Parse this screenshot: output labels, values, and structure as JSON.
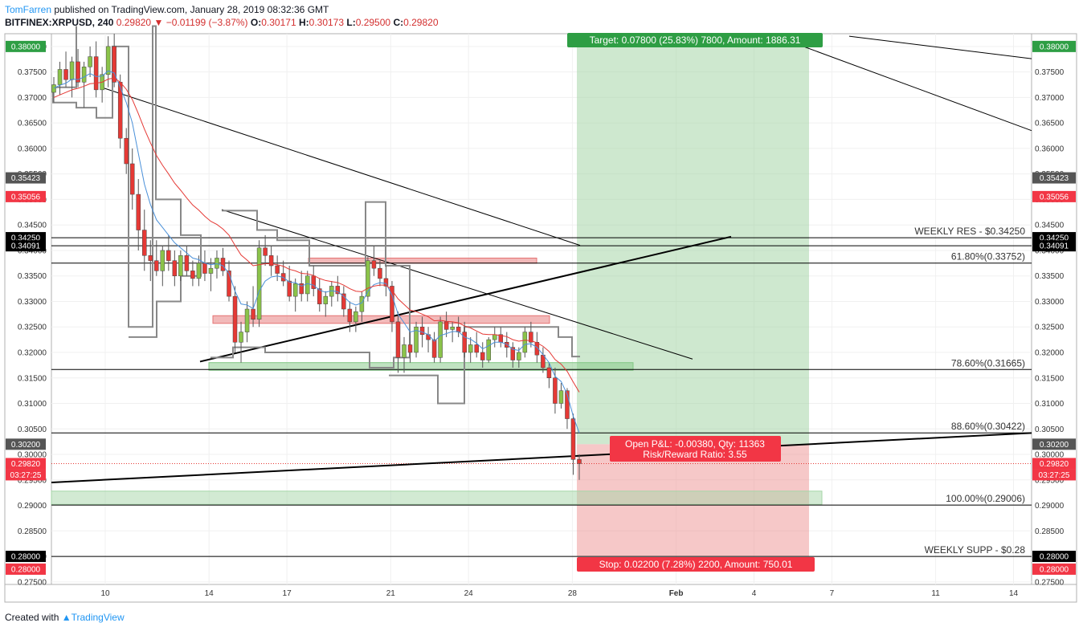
{
  "header": {
    "author": "TomFarren",
    "published": "published on TradingView.com, January 28, 2019 08:32:36 GMT",
    "symbol": "BITFINEX:XRPUSD, 240",
    "last": "0.29820",
    "change": "−0.01199 (−3.87%)",
    "o_label": "O:",
    "o_value": "0.30171",
    "h_label": "H:",
    "h_value": "0.30173",
    "l_label": "L:",
    "l_value": "0.29500",
    "c_label": "C:",
    "c_value": "0.29820"
  },
  "footer": {
    "created_with": "Created with",
    "brand": "TradingView"
  },
  "colors": {
    "up": "#8bc34a",
    "down": "#e53935",
    "green_tag": "#26a69a",
    "red_tag": "#f23645",
    "dark_tag": "#555555",
    "black_tag": "#000000"
  },
  "chart_data": {
    "type": "candlestick",
    "y_ticks": [
      "0.38000",
      "0.37500",
      "0.37000",
      "0.36500",
      "0.36000",
      "0.35500",
      "0.35000",
      "0.34500",
      "0.34000",
      "0.33500",
      "0.33000",
      "0.32500",
      "0.32000",
      "0.31500",
      "0.31000",
      "0.30500",
      "0.30000",
      "0.29500",
      "0.29000",
      "0.28500",
      "0.28000",
      "0.27500"
    ],
    "ylim": [
      0.2745,
      0.3825
    ],
    "x_ticks": [
      "10",
      "14",
      "17",
      "21",
      "24",
      "28",
      "Feb",
      "4",
      "7",
      "11",
      "14"
    ],
    "price_tags": [
      {
        "price": 0.38,
        "text": "0.38000",
        "kind": "green"
      },
      {
        "price": 0.35423,
        "text": "0.35423",
        "kind": "dark"
      },
      {
        "price": 0.35056,
        "text": "0.35056",
        "kind": "red"
      },
      {
        "price": 0.3425,
        "text": "0.34250",
        "kind": "black"
      },
      {
        "price": 0.34091,
        "text": "0.34091",
        "kind": "black"
      },
      {
        "price": 0.302,
        "text": "0.30200",
        "kind": "dark"
      },
      {
        "price": 0.2982,
        "text": "0.29820",
        "kind": "red"
      },
      {
        "price": 0.296,
        "text": "03:27:25",
        "kind": "red"
      },
      {
        "price": 0.28,
        "text": "0.28000",
        "kind": "black"
      },
      {
        "price": 0.2775,
        "text": "0.28000",
        "kind": "red"
      }
    ],
    "horizontal_levels": [
      {
        "price": 0.3425,
        "label": "WEEKLY RES - $0.34250"
      },
      {
        "price": 0.33752,
        "label": "61.80%(0.33752)"
      },
      {
        "price": 0.31665,
        "label": "78.60%(0.31665)"
      },
      {
        "price": 0.30422,
        "label": "88.60%(0.30422)"
      },
      {
        "price": 0.29006,
        "label": "100.00%(0.29006)"
      },
      {
        "price": 0.28,
        "label": "WEEKLY SUPP - $0.28"
      }
    ],
    "position": {
      "entry": 0.302,
      "target": 0.38,
      "stop": 0.28,
      "target_text": "Target: 0.07800 (25.83%) 7800, Amount: 1886.31",
      "stop_text": "Stop: 0.02200 (7.28%) 2200, Amount: 750.01",
      "pnl_text": "Open P&L: -0.00380, Qty: 11363",
      "rr_text": "Risk/Reward Ratio: 3.55"
    },
    "candles": [
      [
        0.371,
        0.374,
        0.369,
        0.3725
      ],
      [
        0.3725,
        0.377,
        0.3705,
        0.3755
      ],
      [
        0.3755,
        0.379,
        0.372,
        0.3735
      ],
      [
        0.3735,
        0.378,
        0.37,
        0.377
      ],
      [
        0.377,
        0.3795,
        0.372,
        0.373
      ],
      [
        0.373,
        0.377,
        0.368,
        0.376
      ],
      [
        0.376,
        0.38,
        0.374,
        0.378
      ],
      [
        0.378,
        0.381,
        0.37,
        0.3715
      ],
      [
        0.3715,
        0.376,
        0.369,
        0.3745
      ],
      [
        0.3745,
        0.382,
        0.372,
        0.38
      ],
      [
        0.38,
        0.3825,
        0.372,
        0.373
      ],
      [
        0.373,
        0.3745,
        0.36,
        0.362
      ],
      [
        0.362,
        0.364,
        0.355,
        0.357
      ],
      [
        0.357,
        0.36,
        0.348,
        0.351
      ],
      [
        0.351,
        0.354,
        0.34,
        0.344
      ],
      [
        0.344,
        0.348,
        0.336,
        0.339
      ],
      [
        0.339,
        0.342,
        0.334,
        0.338
      ],
      [
        0.338,
        0.342,
        0.335,
        0.336
      ],
      [
        0.336,
        0.341,
        0.333,
        0.34
      ],
      [
        0.34,
        0.343,
        0.336,
        0.338
      ],
      [
        0.338,
        0.34,
        0.333,
        0.335
      ],
      [
        0.335,
        0.34,
        0.334,
        0.339
      ],
      [
        0.339,
        0.341,
        0.335,
        0.336
      ],
      [
        0.336,
        0.338,
        0.333,
        0.3345
      ],
      [
        0.3345,
        0.339,
        0.333,
        0.3375
      ],
      [
        0.3375,
        0.34,
        0.334,
        0.3355
      ],
      [
        0.3355,
        0.3385,
        0.332,
        0.3365
      ],
      [
        0.3365,
        0.34,
        0.3345,
        0.3385
      ],
      [
        0.3385,
        0.3405,
        0.335,
        0.336
      ],
      [
        0.336,
        0.338,
        0.33,
        0.331
      ],
      [
        0.331,
        0.333,
        0.32,
        0.322
      ],
      [
        0.322,
        0.326,
        0.318,
        0.324
      ],
      [
        0.324,
        0.33,
        0.322,
        0.3285
      ],
      [
        0.3285,
        0.333,
        0.325,
        0.3265
      ],
      [
        0.3265,
        0.342,
        0.325,
        0.3405
      ],
      [
        0.3405,
        0.343,
        0.337,
        0.339
      ],
      [
        0.339,
        0.341,
        0.335,
        0.337
      ],
      [
        0.337,
        0.339,
        0.334,
        0.3355
      ],
      [
        0.3355,
        0.338,
        0.333,
        0.334
      ],
      [
        0.334,
        0.337,
        0.33,
        0.331
      ],
      [
        0.331,
        0.3345,
        0.328,
        0.3335
      ],
      [
        0.3335,
        0.336,
        0.33,
        0.3315
      ],
      [
        0.3315,
        0.336,
        0.33,
        0.335
      ],
      [
        0.335,
        0.337,
        0.331,
        0.3325
      ],
      [
        0.3325,
        0.3345,
        0.328,
        0.3295
      ],
      [
        0.3295,
        0.332,
        0.327,
        0.331
      ],
      [
        0.331,
        0.334,
        0.329,
        0.333
      ],
      [
        0.333,
        0.335,
        0.33,
        0.3315
      ],
      [
        0.3315,
        0.333,
        0.327,
        0.3285
      ],
      [
        0.3285,
        0.33,
        0.324,
        0.326
      ],
      [
        0.326,
        0.329,
        0.324,
        0.328
      ],
      [
        0.328,
        0.332,
        0.326,
        0.331
      ],
      [
        0.331,
        0.339,
        0.33,
        0.338
      ],
      [
        0.338,
        0.341,
        0.335,
        0.3365
      ],
      [
        0.3365,
        0.338,
        0.333,
        0.3345
      ],
      [
        0.3345,
        0.337,
        0.331,
        0.333
      ],
      [
        0.333,
        0.334,
        0.324,
        0.326
      ],
      [
        0.326,
        0.328,
        0.316,
        0.319
      ],
      [
        0.319,
        0.323,
        0.316,
        0.3215
      ],
      [
        0.3215,
        0.324,
        0.318,
        0.32
      ],
      [
        0.32,
        0.326,
        0.319,
        0.325
      ],
      [
        0.325,
        0.327,
        0.321,
        0.3235
      ],
      [
        0.3235,
        0.325,
        0.32,
        0.3225
      ],
      [
        0.3225,
        0.324,
        0.318,
        0.319
      ],
      [
        0.319,
        0.327,
        0.318,
        0.326
      ],
      [
        0.326,
        0.328,
        0.323,
        0.3245
      ],
      [
        0.3245,
        0.326,
        0.322,
        0.325
      ],
      [
        0.325,
        0.327,
        0.323,
        0.324
      ],
      [
        0.324,
        0.326,
        0.319,
        0.32
      ],
      [
        0.32,
        0.323,
        0.318,
        0.3215
      ],
      [
        0.3215,
        0.324,
        0.319,
        0.32
      ],
      [
        0.32,
        0.322,
        0.317,
        0.3185
      ],
      [
        0.3185,
        0.323,
        0.318,
        0.3225
      ],
      [
        0.3225,
        0.325,
        0.321,
        0.3235
      ],
      [
        0.3235,
        0.325,
        0.321,
        0.322
      ],
      [
        0.322,
        0.324,
        0.319,
        0.321
      ],
      [
        0.321,
        0.322,
        0.317,
        0.3185
      ],
      [
        0.3185,
        0.321,
        0.317,
        0.32
      ],
      [
        0.32,
        0.325,
        0.319,
        0.324
      ],
      [
        0.324,
        0.326,
        0.321,
        0.322
      ],
      [
        0.322,
        0.324,
        0.318,
        0.3195
      ],
      [
        0.3195,
        0.321,
        0.316,
        0.317
      ],
      [
        0.317,
        0.318,
        0.313,
        0.315
      ],
      [
        0.315,
        0.317,
        0.308,
        0.31
      ],
      [
        0.31,
        0.314,
        0.309,
        0.3125
      ],
      [
        0.3125,
        0.313,
        0.305,
        0.307
      ],
      [
        0.307,
        0.308,
        0.296,
        0.299
      ],
      [
        0.299,
        0.3,
        0.295,
        0.2982
      ]
    ],
    "ema_fast": [
      0.3718,
      0.3724,
      0.3728,
      0.3736,
      0.3735,
      0.374,
      0.3747,
      0.3741,
      0.3742,
      0.3752,
      0.3748,
      0.372,
      0.369,
      0.365,
      0.359,
      0.353,
      0.349,
      0.346,
      0.3445,
      0.343,
      0.3415,
      0.3405,
      0.3395,
      0.3385,
      0.3382,
      0.3375,
      0.3372,
      0.3374,
      0.337,
      0.3355,
      0.332,
      0.3295,
      0.3293,
      0.3286,
      0.332,
      0.334,
      0.3348,
      0.335,
      0.3347,
      0.3338,
      0.3337,
      0.333,
      0.3335,
      0.3332,
      0.3322,
      0.3318,
      0.3321,
      0.3319,
      0.331,
      0.3298,
      0.3293,
      0.3297,
      0.332,
      0.3333,
      0.3337,
      0.3335,
      0.3312,
      0.3275,
      0.3258,
      0.324,
      0.3243,
      0.324,
      0.3235,
      0.3222,
      0.3233,
      0.3237,
      0.3241,
      0.3241,
      0.323,
      0.3226,
      0.3218,
      0.3207,
      0.3213,
      0.322,
      0.322,
      0.3216,
      0.3206,
      0.3204,
      0.3216,
      0.3217,
      0.321,
      0.3196,
      0.318,
      0.3153,
      0.3143,
      0.3118,
      0.3075,
      0.3042
    ],
    "ema_slow": [
      0.37,
      0.3705,
      0.371,
      0.3715,
      0.3718,
      0.3722,
      0.3727,
      0.3728,
      0.373,
      0.3736,
      0.3738,
      0.373,
      0.3716,
      0.3696,
      0.3668,
      0.3638,
      0.3611,
      0.3586,
      0.3567,
      0.355,
      0.3532,
      0.3518,
      0.3503,
      0.3489,
      0.3479,
      0.3467,
      0.3457,
      0.3451,
      0.3442,
      0.343,
      0.341,
      0.3391,
      0.3381,
      0.337,
      0.3372,
      0.3374,
      0.3374,
      0.3372,
      0.3369,
      0.3363,
      0.336,
      0.3355,
      0.3354,
      0.3351,
      0.3345,
      0.3341,
      0.3339,
      0.3337,
      0.3332,
      0.3325,
      0.332,
      0.3319,
      0.3326,
      0.333,
      0.3332,
      0.3332,
      0.3322,
      0.3305,
      0.3294,
      0.3283,
      0.328,
      0.3275,
      0.327,
      0.3262,
      0.3263,
      0.3261,
      0.326,
      0.3258,
      0.3252,
      0.3248,
      0.3242,
      0.3236,
      0.3235,
      0.3235,
      0.3233,
      0.3231,
      0.3225,
      0.3222,
      0.3224,
      0.3223,
      0.3219,
      0.3212,
      0.3202,
      0.3186,
      0.3177,
      0.3163,
      0.3142,
      0.3122
    ]
  }
}
